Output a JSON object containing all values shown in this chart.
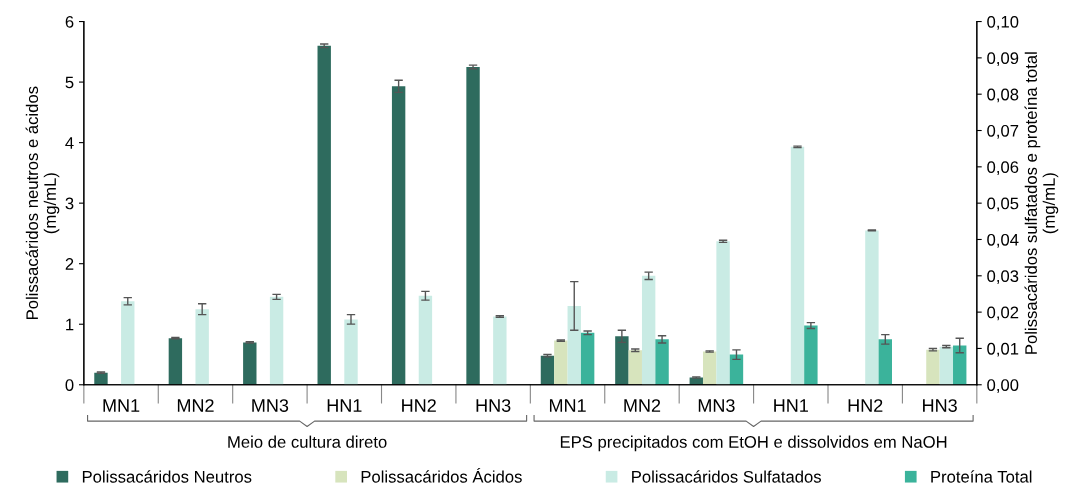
{
  "chart_data": {
    "type": "bar",
    "ylabel": "Polissacáridos neutros e ácidos\n(mg/mL)",
    "y2label": "Polissacáridos sulfatados e proteína total\n(mg/mL)",
    "categories": [
      "MN1",
      "MN2",
      "MN3",
      "HN1",
      "HN2",
      "HN3",
      "MN1",
      "MN2",
      "MN3",
      "HN1",
      "HN2",
      "HN3"
    ],
    "series": [
      {
        "name": "Polissacáridos Neutros",
        "color": "#2e6b5e",
        "values": [
          0.2,
          0.77,
          0.7,
          5.6,
          4.93,
          5.25,
          0.48,
          0.8,
          0.12,
          null,
          null,
          null
        ],
        "errors": [
          0.01,
          0.01,
          0.01,
          0.03,
          0.1,
          0.03,
          0.02,
          0.1,
          0.01,
          null,
          null,
          null
        ]
      },
      {
        "name": "Polissacáridos Ácidos",
        "color": "#d7e4bd",
        "values": [
          null,
          null,
          null,
          null,
          null,
          null,
          0.73,
          0.57,
          0.55,
          null,
          null,
          0.58
        ],
        "errors": [
          null,
          null,
          null,
          null,
          null,
          null,
          0.01,
          0.02,
          0.01,
          null,
          null,
          0.02
        ]
      },
      {
        "name": "Polissacáridos Sulfatados",
        "color": "#c9ebe4",
        "axis": "y2",
        "values": [
          0.023,
          0.0208,
          0.0242,
          0.018,
          0.0245,
          0.0188,
          0.0217,
          0.03,
          0.0395,
          0.0655,
          0.0425,
          0.0105
        ],
        "errors": [
          0.001,
          0.0015,
          0.0007,
          0.0013,
          0.0012,
          0.0002,
          0.0067,
          0.001,
          0.0003,
          0.0002,
          0.0001,
          0.0003
        ]
      },
      {
        "name": "Proteína Total",
        "color": "#3bb39b",
        "axis": "y2",
        "values": [
          null,
          null,
          null,
          null,
          null,
          null,
          0.0143,
          0.0125,
          0.0083,
          0.0163,
          0.0125,
          0.0108
        ],
        "errors": [
          null,
          null,
          null,
          null,
          null,
          null,
          0.0005,
          0.001,
          0.0013,
          0.0008,
          0.0013,
          0.002
        ]
      }
    ],
    "ylim": [
      0,
      6
    ],
    "yticks": [
      0,
      1,
      2,
      3,
      4,
      5,
      6
    ],
    "y2lim": [
      0,
      0.1
    ],
    "y2ticks": [
      {
        "value": 0,
        "label": "0,00"
      },
      {
        "value": 0.01,
        "label": "0,01"
      },
      {
        "value": 0.02,
        "label": "0,02"
      },
      {
        "value": 0.03,
        "label": "0,03"
      },
      {
        "value": 0.04,
        "label": "0,04"
      },
      {
        "value": 0.05,
        "label": "0,05"
      },
      {
        "value": 0.06,
        "label": "0,06"
      },
      {
        "value": 0.07,
        "label": "0,07"
      },
      {
        "value": 0.08,
        "label": "0,08"
      },
      {
        "value": 0.09,
        "label": "0,09"
      },
      {
        "value": 0.1,
        "label": "0,10"
      }
    ],
    "annotations": [
      "Meio de cultura direto",
      "EPS precipitados com EtOH e dissolvidos em NaOH"
    ],
    "legend": "bottom",
    "grid": false
  }
}
